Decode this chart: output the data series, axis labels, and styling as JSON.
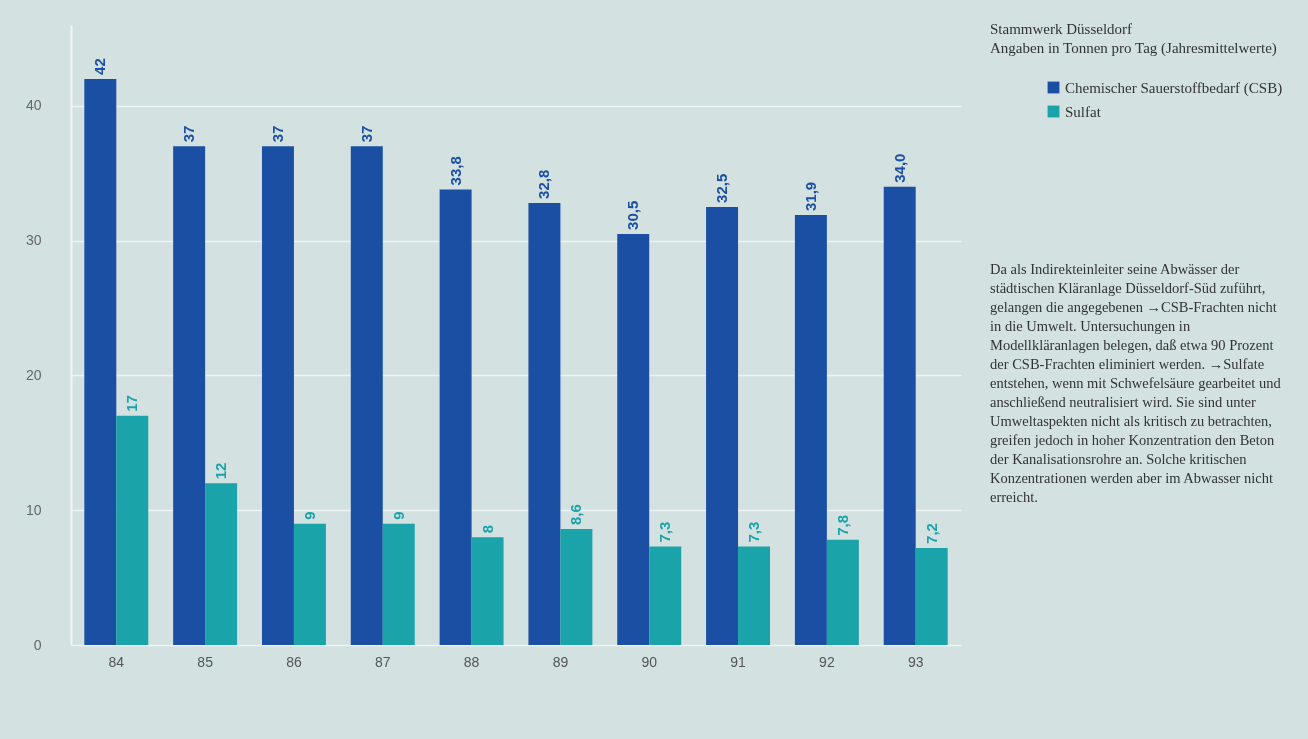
{
  "chart_data": {
    "type": "bar",
    "title": "Stammwerk Düsseldorf",
    "subtitle": "Angaben in Tonnen pro Tag (Jahresmittelwerte)",
    "categories": [
      "84",
      "85",
      "86",
      "87",
      "88",
      "89",
      "90",
      "91",
      "92",
      "93"
    ],
    "series": [
      {
        "name": "Chemischer Sauerstoffbedarf (CSB)",
        "color": "#1b4fa3",
        "values": [
          42,
          37,
          37,
          37,
          33.8,
          32.8,
          30.5,
          32.5,
          31.9,
          34.0
        ],
        "value_labels": [
          "42",
          "37",
          "37",
          "37",
          "33,8",
          "32,8",
          "30,5",
          "32,5",
          "31,9",
          "34,0"
        ]
      },
      {
        "name": "Sulfat",
        "color": "#1aa3a8",
        "values": [
          17,
          12,
          9,
          9,
          8,
          8.6,
          7.3,
          7.3,
          7.8,
          7.2
        ],
        "value_labels": [
          "17",
          "12",
          "9",
          "9",
          "8",
          "8,6",
          "7,3",
          "7,3",
          "7,8",
          "7,2"
        ]
      }
    ],
    "ylim": [
      0,
      46
    ],
    "yticks": [
      0,
      10,
      20,
      30,
      40
    ],
    "grid": "y",
    "legend": "right",
    "annotations": [
      "Da als Indirekteinleiter seine Abwässer der städtischen Kläranlage Düsseldorf-Süd zuführt, gelangen die angegebenen →CSB-Frachten nicht in die Umwelt. Untersuchungen in Modellkläranlagen belegen, daß etwa 90 Prozent der CSB-Frachten eliminiert werden. →Sulfate entstehen, wenn mit Schwefelsäure gearbeitet und anschließend neutralisiert wird. Sie sind unter Umweltaspekten nicht als kritisch zu betrachten, greifen jedoch in hoher Konzentration den Beton der Kanalisationsrohre an. Solche kritischen Konzentrationen werden aber im Abwasser nicht erreicht."
    ]
  }
}
